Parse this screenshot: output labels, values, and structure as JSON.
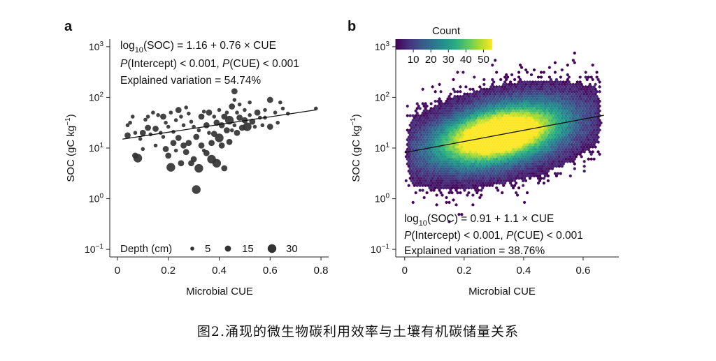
{
  "caption": "图2.涌现的微生物碳利用效率与土壤有机碳储量关系",
  "chart_data": [
    {
      "panel": "a",
      "type": "scatter",
      "xlabel": "Microbial CUE",
      "ylabel": "SOC  (gC kg",
      "ylabel_sup": "−1",
      "ylabel_close": ")",
      "xlim": [
        -0.03,
        0.83
      ],
      "ylim_log10": [
        -1.15,
        3.15
      ],
      "yscale": "log10",
      "xticks": [
        0,
        0.2,
        0.4,
        0.6,
        0.8
      ],
      "xtick_labels": [
        "0",
        "0.2",
        "0.4",
        "0.6",
        "0.8"
      ],
      "yticks_log10": [
        -1,
        0,
        1,
        2,
        3
      ],
      "ytick_labels": [
        "10",
        "10",
        "10",
        "10",
        "10"
      ],
      "ytick_exponents": [
        "−1",
        "0",
        "1",
        "2",
        "3"
      ],
      "fit": {
        "intercept": 1.16,
        "slope": 0.76,
        "x_range": [
          0.02,
          0.78
        ]
      },
      "equation": {
        "l1a": "log",
        "l1sub": "10",
        "l1b": "(SOC) = 1.16 + 0.76 × CUE",
        "l2a": "P",
        "l2b": "(Intercept) < 0.001, ",
        "l2c": "P",
        "l2d": "(CUE) < 0.001",
        "l3": "Explained variation = 54.74%"
      },
      "legend": {
        "title": "Depth (cm)",
        "items": [
          {
            "label": "5",
            "depth": 5
          },
          {
            "label": "15",
            "depth": 15
          },
          {
            "label": "30",
            "depth": 30
          }
        ]
      },
      "points": [
        [
          0.04,
          1.45,
          5
        ],
        [
          0.04,
          1.25,
          15
        ],
        [
          0.05,
          1.5,
          5
        ],
        [
          0.06,
          1.62,
          5
        ],
        [
          0.07,
          0.85,
          15
        ],
        [
          0.07,
          1.3,
          5
        ],
        [
          0.08,
          0.8,
          30
        ],
        [
          0.09,
          1.18,
          5
        ],
        [
          0.1,
          1.3,
          15
        ],
        [
          0.1,
          0.98,
          5
        ],
        [
          0.11,
          1.56,
          5
        ],
        [
          0.12,
          1.4,
          15
        ],
        [
          0.12,
          1.62,
          5
        ],
        [
          0.13,
          1.27,
          5
        ],
        [
          0.14,
          1.7,
          5
        ],
        [
          0.15,
          1.05,
          5
        ],
        [
          0.15,
          1.38,
          15
        ],
        [
          0.16,
          1.65,
          5
        ],
        [
          0.17,
          1.3,
          5
        ],
        [
          0.18,
          1.62,
          15
        ],
        [
          0.18,
          1.22,
          5
        ],
        [
          0.19,
          1.5,
          5
        ],
        [
          0.19,
          0.98,
          15
        ],
        [
          0.2,
          0.85,
          15
        ],
        [
          0.2,
          1.42,
          5
        ],
        [
          0.21,
          1.7,
          5
        ],
        [
          0.21,
          0.62,
          30
        ],
        [
          0.22,
          1.1,
          15
        ],
        [
          0.22,
          1.32,
          5
        ],
        [
          0.23,
          0.95,
          5
        ],
        [
          0.23,
          1.55,
          5
        ],
        [
          0.24,
          1.75,
          15
        ],
        [
          0.24,
          1.2,
          15
        ],
        [
          0.25,
          0.7,
          15
        ],
        [
          0.25,
          1.62,
          5
        ],
        [
          0.26,
          1.05,
          15
        ],
        [
          0.26,
          1.45,
          5
        ],
        [
          0.27,
          1.8,
          5
        ],
        [
          0.27,
          0.92,
          15
        ],
        [
          0.28,
          1.68,
          5
        ],
        [
          0.28,
          1.1,
          15
        ],
        [
          0.29,
          0.7,
          15
        ],
        [
          0.29,
          1.52,
          5
        ],
        [
          0.3,
          1.42,
          5
        ],
        [
          0.3,
          0.78,
          15
        ],
        [
          0.31,
          0.18,
          30
        ],
        [
          0.31,
          1.22,
          15
        ],
        [
          0.32,
          0.6,
          30
        ],
        [
          0.32,
          1.35,
          5
        ],
        [
          0.33,
          1.05,
          15
        ],
        [
          0.33,
          1.62,
          15
        ],
        [
          0.34,
          0.95,
          5
        ],
        [
          0.34,
          1.72,
          5
        ],
        [
          0.35,
          1.45,
          15
        ],
        [
          0.35,
          0.9,
          15
        ],
        [
          0.36,
          1.7,
          15
        ],
        [
          0.36,
          1.3,
          5
        ],
        [
          0.37,
          0.78,
          30
        ],
        [
          0.37,
          1.1,
          15
        ],
        [
          0.38,
          1.62,
          5
        ],
        [
          0.38,
          1.28,
          15
        ],
        [
          0.39,
          0.7,
          30
        ],
        [
          0.39,
          1.5,
          15
        ],
        [
          0.4,
          1.2,
          30
        ],
        [
          0.4,
          1.75,
          5
        ],
        [
          0.41,
          1.05,
          15
        ],
        [
          0.41,
          1.45,
          15
        ],
        [
          0.42,
          0.6,
          15
        ],
        [
          0.42,
          1.62,
          15
        ],
        [
          0.43,
          1.35,
          15
        ],
        [
          0.43,
          1.7,
          5
        ],
        [
          0.44,
          1.12,
          15
        ],
        [
          0.44,
          1.55,
          30
        ],
        [
          0.45,
          1.82,
          15
        ],
        [
          0.45,
          1.35,
          5
        ],
        [
          0.46,
          1.95,
          5
        ],
        [
          0.46,
          2.12,
          15
        ],
        [
          0.46,
          1.45,
          5
        ],
        [
          0.47,
          1.7,
          5
        ],
        [
          0.47,
          1.3,
          15
        ],
        [
          0.48,
          1.6,
          15
        ],
        [
          0.48,
          1.86,
          5
        ],
        [
          0.49,
          1.4,
          15
        ],
        [
          0.5,
          1.75,
          5
        ],
        [
          0.5,
          1.55,
          15
        ],
        [
          0.51,
          1.42,
          30
        ],
        [
          0.52,
          1.65,
          5
        ],
        [
          0.52,
          1.9,
          5
        ],
        [
          0.53,
          1.52,
          15
        ],
        [
          0.54,
          1.42,
          5
        ],
        [
          0.55,
          1.7,
          15
        ],
        [
          0.56,
          1.6,
          5
        ],
        [
          0.57,
          1.45,
          5
        ],
        [
          0.58,
          1.6,
          5
        ],
        [
          0.58,
          1.75,
          5
        ],
        [
          0.6,
          1.95,
          15
        ],
        [
          0.6,
          1.42,
          15
        ],
        [
          0.62,
          1.7,
          5
        ],
        [
          0.63,
          1.5,
          5
        ],
        [
          0.64,
          1.9,
          5
        ],
        [
          0.65,
          1.78,
          5
        ],
        [
          0.67,
          1.68,
          5
        ],
        [
          0.78,
          1.78,
          5
        ]
      ]
    },
    {
      "panel": "b",
      "type": "heatmap",
      "xlabel": "Microbial CUE",
      "ylabel": "SOC  (gC kg",
      "ylabel_sup": "−1",
      "ylabel_close": ")",
      "xlim": [
        -0.03,
        0.72
      ],
      "ylim_log10": [
        -1.15,
        3.15
      ],
      "yscale": "log10",
      "xticks": [
        0,
        0.2,
        0.4,
        0.6
      ],
      "xtick_labels": [
        "0",
        "0.2",
        "0.4",
        "0.6"
      ],
      "yticks_log10": [
        -1,
        0,
        1,
        2,
        3
      ],
      "ytick_labels": [
        "10",
        "10",
        "10",
        "10",
        "10"
      ],
      "ytick_exponents": [
        "−1",
        "0",
        "1",
        "2",
        "3"
      ],
      "fit": {
        "intercept": 0.91,
        "slope": 1.1,
        "x_range": [
          0.0,
          0.67
        ]
      },
      "equation": {
        "l1a": "log",
        "l1sub": "10",
        "l1b": "(SOC) = 0.91 + 1.1 × CUE",
        "l2a": "P",
        "l2b": "(Intercept) < 0.001, ",
        "l2c": "P",
        "l2d": "(CUE) < 0.001",
        "l3": "Explained variation = 38.76%"
      },
      "colorbar": {
        "title": "Count",
        "ticks": [
          10,
          20,
          30,
          40,
          50
        ],
        "tick_labels": [
          "10",
          "20",
          "30",
          "40",
          "50"
        ],
        "range": [
          0,
          55
        ],
        "colors": [
          "#440154",
          "#472d7b",
          "#3b528b",
          "#2c728e",
          "#21918c",
          "#28ae80",
          "#5ec962",
          "#addc30",
          "#fde725"
        ]
      },
      "density": {
        "center_x": 0.32,
        "center_log_soc": 1.15,
        "sd_x": 0.13,
        "sd_log_soc": 0.38,
        "max_count": 55,
        "x_extent": [
          0.0,
          0.67
        ]
      }
    }
  ]
}
